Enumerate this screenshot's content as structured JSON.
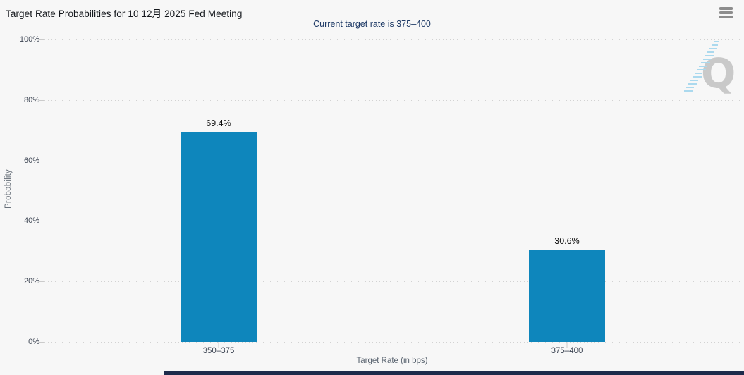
{
  "header": {
    "title": "Target Rate Probabilities for 10 12月 2025 Fed Meeting",
    "subtitle": "Current target rate is 375–400",
    "menu_icon": "hamburger-menu-icon"
  },
  "chart_data": {
    "type": "bar",
    "title": "Target Rate Probabilities for 10 12月 2025 Fed Meeting",
    "subtitle": "Current target rate is 375–400",
    "categories": [
      "350–375",
      "375–400"
    ],
    "values": [
      69.4,
      30.6
    ],
    "value_labels": [
      "69.4%",
      "30.6%"
    ],
    "xlabel": "Target Rate (in bps)",
    "ylabel": "Probability",
    "ylim": [
      0,
      100
    ],
    "yticks": [
      "100%",
      "80%",
      "60%",
      "40%",
      "20%",
      "0%"
    ],
    "grid": "horizontal-dotted",
    "legend": "none",
    "bar_color": "#0e86bc"
  },
  "watermark": {
    "letter": "Q"
  },
  "colors": {
    "bar": "#0e86bc",
    "subtitle_text": "#1e3a66",
    "background": "#f7f7f7",
    "bottom_bar": "#1d2b4b",
    "grid_dots": "#d2d2d2"
  }
}
